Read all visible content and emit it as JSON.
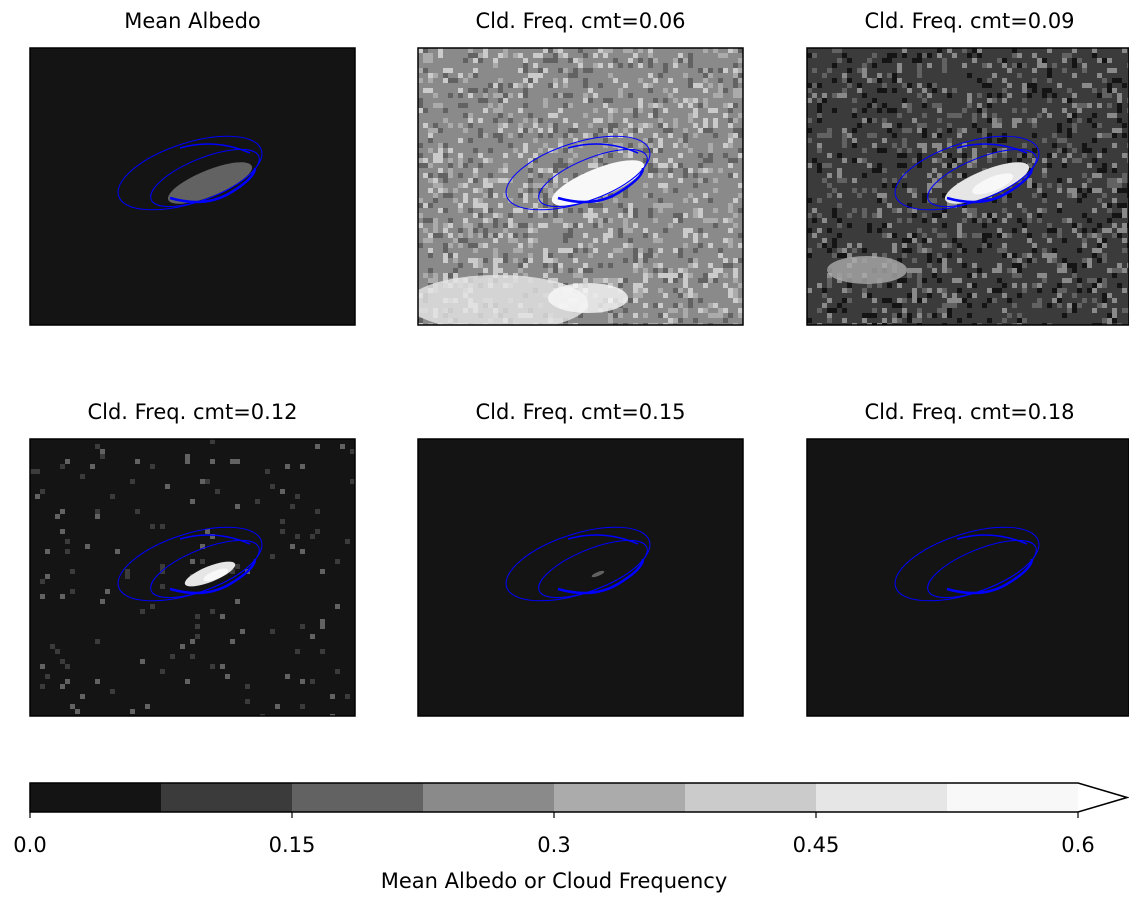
{
  "chart_data": {
    "type": "map-grid",
    "panels": [
      {
        "title": "Mean Albedo"
      },
      {
        "title": "Cld. Freq. cmt=0.06"
      },
      {
        "title": "Cld. Freq. cmt=0.09"
      },
      {
        "title": "Cld. Freq. cmt=0.12"
      },
      {
        "title": "Cld. Freq. cmt=0.15"
      },
      {
        "title": "Cld. Freq. cmt=0.18"
      }
    ],
    "colorbar": {
      "label": "Mean Albedo or Cloud Frequency",
      "xlim": [
        0,
        0.6
      ],
      "xticks": [
        {
          "value": 0,
          "label": "0.0"
        },
        0.15,
        0.3,
        0.45,
        0.6
      ],
      "levels": [
        0,
        0.075,
        0.15,
        0.225,
        0.3,
        0.375,
        0.45,
        0.525,
        0.6
      ],
      "colors": [
        "#141414",
        "#3b3b3b",
        "#626262",
        "#8a8a8a",
        "#ababab",
        "#cbcbcb",
        "#e6e6e6",
        "#f8f8f8"
      ],
      "extend": "max",
      "contour_color": "#0000ff"
    }
  }
}
